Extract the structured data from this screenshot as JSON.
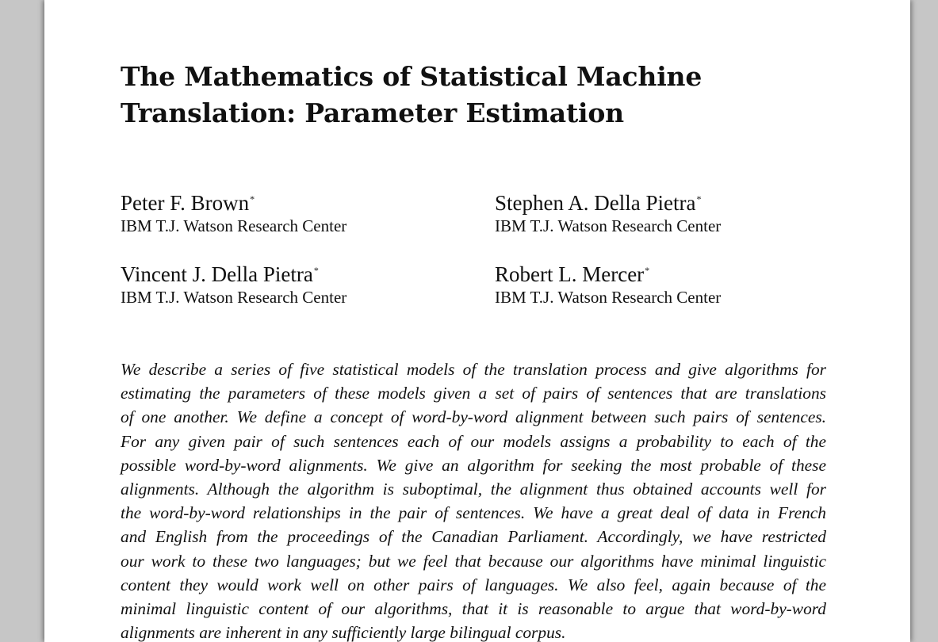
{
  "paper": {
    "title_lines": [
      "The Mathematics of Statistical Machine",
      "Translation: Parameter Estimation"
    ],
    "authors": [
      {
        "name": "Peter F. Brown",
        "mark": "*",
        "affiliation": "IBM T.J. Watson Research Center"
      },
      {
        "name": "Stephen A. Della Pietra",
        "mark": "*",
        "affiliation": "IBM T.J. Watson Research Center"
      },
      {
        "name": "Vincent J. Della Pietra",
        "mark": "*",
        "affiliation": "IBM T.J. Watson Research Center"
      },
      {
        "name": "Robert L. Mercer",
        "mark": "*",
        "affiliation": "IBM T.J. Watson Research Center"
      }
    ],
    "abstract_lines": [
      "We describe a series of five statistical models of the translation process and give algorithms for",
      "estimating the parameters of these models given a set of pairs of sentences that are translations",
      "of one another. We define a concept of word-by-word alignment between such pairs of sentences.",
      "For any given pair of such sentences each of our models assigns a probability to each of the",
      "possible word-by-word alignments. We give an algorithm for seeking the most probable of these",
      "alignments. Although the algorithm is suboptimal, the alignment thus obtained accounts well for",
      "the word-by-word relationships in the pair of sentences. We have a great deal of data in French",
      "and English from the proceedings of the Canadian Parliament. Accordingly, we have restricted",
      "our work to these two languages; but we feel that because our algorithms have minimal linguistic",
      "content they would work well on other pairs of languages. We also feel, again because of the",
      "minimal linguistic content of our algorithms, that it is reasonable to argue that word-by-word",
      "alignments are inherent in any sufficiently large bilingual corpus."
    ]
  }
}
